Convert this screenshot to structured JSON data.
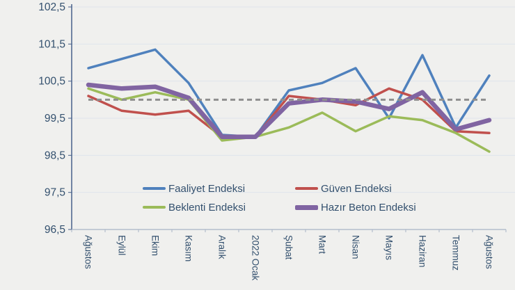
{
  "chart_data": {
    "type": "line",
    "title": "",
    "categories": [
      "Ağustos",
      "Eylül",
      "Ekim",
      "Kasım",
      "Aralık",
      "2022 Ocak",
      "Şubat",
      "Mart",
      "Nisan",
      "Mayıs",
      "Haziran",
      "Temmuz",
      "Ağustos"
    ],
    "series": [
      {
        "name": "Faaliyet Endeksi",
        "color": "#4F81BD",
        "line_width": 3.5,
        "values": [
          100.85,
          101.1,
          101.35,
          100.45,
          99.05,
          99.0,
          100.25,
          100.45,
          100.85,
          99.5,
          101.2,
          99.25,
          100.65
        ]
      },
      {
        "name": "Güven Endeksi",
        "color": "#C0504D",
        "line_width": 3.5,
        "values": [
          100.1,
          99.7,
          99.6,
          99.7,
          99.0,
          99.0,
          100.1,
          100.0,
          99.85,
          100.3,
          100.0,
          99.15,
          99.1
        ]
      },
      {
        "name": "Beklenti Endeksi",
        "color": "#9BBB59",
        "line_width": 3.5,
        "values": [
          100.3,
          100.0,
          100.2,
          100.0,
          98.9,
          99.0,
          99.25,
          99.65,
          99.15,
          99.55,
          99.45,
          99.1,
          98.6
        ]
      },
      {
        "name": "Hazır Beton Endeksi",
        "color": "#8064A2",
        "line_width": 6.5,
        "values": [
          100.4,
          100.3,
          100.35,
          100.05,
          99.0,
          99.0,
          99.9,
          100.0,
          99.95,
          99.75,
          100.2,
          99.2,
          99.45
        ]
      }
    ],
    "reference_line": {
      "value": 100.0,
      "style": "dashed",
      "color": "#8F8F8F",
      "width": 3
    },
    "y_axis": {
      "min": 96.5,
      "max": 102.5,
      "step": 1,
      "tick_labels": [
        "102,5",
        "101,5",
        "100,5",
        "99,5",
        "98,5",
        "97,5",
        "96,5"
      ]
    },
    "x_axis": {
      "label_rotation_deg": 90
    },
    "legend": {
      "position": "bottom-inside",
      "columns": 2
    },
    "grid": true,
    "ylim": [
      96.5,
      102.5
    ]
  },
  "colors": {
    "background": "#F0F0EE",
    "gridline": "#DFE5EC",
    "y_axis_line": "#47618A",
    "x_axis_line": "#A8B4C6",
    "axis_text": "#33506E"
  }
}
